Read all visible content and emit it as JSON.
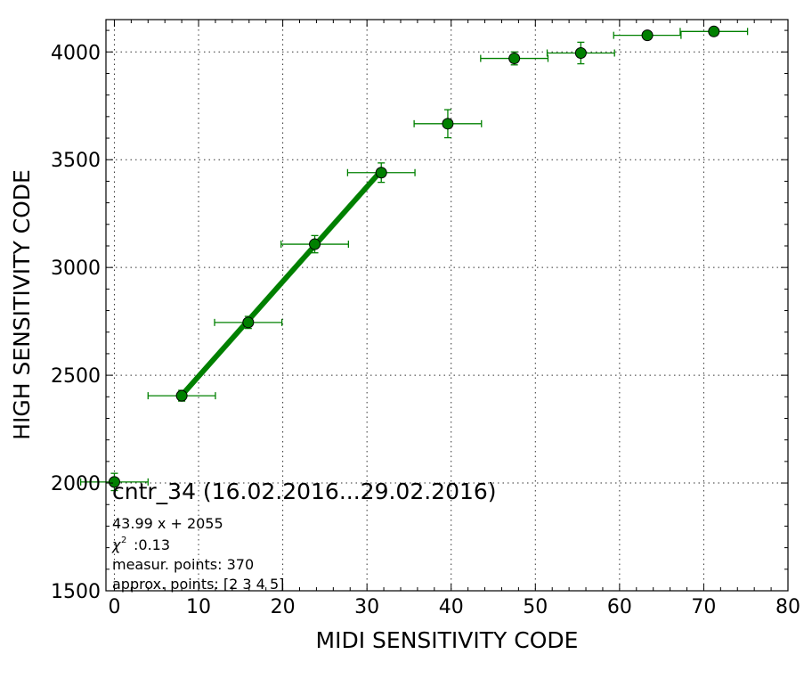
{
  "chart_data": {
    "type": "scatter",
    "xlabel": "MIDI SENSITIVITY CODE",
    "ylabel": "HIGH SENSITIVITY CODE",
    "xlim": [
      -1,
      80
    ],
    "ylim": [
      1500,
      4150
    ],
    "xticks": [
      "0",
      "10",
      "20",
      "30",
      "40",
      "50",
      "60",
      "70",
      "80"
    ],
    "yticks": [
      "1500",
      "2000",
      "2500",
      "3000",
      "3500",
      "4000"
    ],
    "grid": true,
    "color": "#008000",
    "points": [
      {
        "x": 0,
        "y": 2005,
        "xerr": 4,
        "yerr": 40
      },
      {
        "x": 8,
        "y": 2405,
        "xerr": 4,
        "yerr": 25
      },
      {
        "x": 15.9,
        "y": 2745,
        "xerr": 4,
        "yerr": 28
      },
      {
        "x": 23.8,
        "y": 3108,
        "xerr": 4,
        "yerr": 40
      },
      {
        "x": 31.7,
        "y": 3440,
        "xerr": 4,
        "yerr": 45
      },
      {
        "x": 39.6,
        "y": 3667,
        "xerr": 4,
        "yerr": 65
      },
      {
        "x": 47.5,
        "y": 3970,
        "xerr": 4,
        "yerr": 30
      },
      {
        "x": 55.4,
        "y": 3995,
        "xerr": 4,
        "yerr": 50
      },
      {
        "x": 63.3,
        "y": 4077,
        "xerr": 4,
        "yerr": 10
      },
      {
        "x": 71.2,
        "y": 4095,
        "xerr": 4,
        "yerr": 8
      }
    ],
    "fit": {
      "slope": 43.99,
      "intercept": 2055,
      "x_from": 8,
      "x_to": 31.7
    },
    "annotations": {
      "title": "cntr_34 (16.02.2016...29.02.2016)",
      "equation": "43.99 x + 2055",
      "chi2_value": ":0.13",
      "measur_points": "measur. points: 370",
      "approx_points": "approx. points: [2 3 4 5]"
    }
  }
}
